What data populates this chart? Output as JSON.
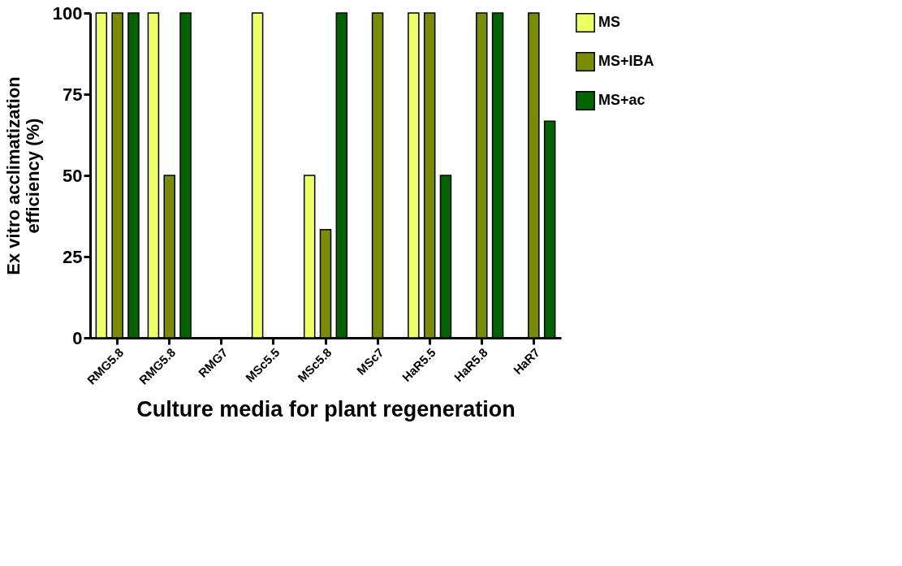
{
  "chart_data": {
    "type": "bar",
    "xlabel": "Culture media for plant regeneration",
    "ylabel": "Ex vitro acclimatization efficiency (%)",
    "categories": [
      "RMG5.8",
      "RMG5.8",
      "RMG7",
      "MSc5.5",
      "MSc5.8",
      "MSc7",
      "HaR5.5",
      "HaR5.8",
      "HaR7"
    ],
    "series": [
      {
        "name": "MS",
        "color": "#eeff66",
        "values": [
          100,
          100,
          0,
          100,
          50,
          0,
          100,
          0,
          0
        ]
      },
      {
        "name": "MS+IBA",
        "color": "#7a8c00",
        "values": [
          100,
          50,
          0,
          0,
          33.3,
          100,
          100,
          100,
          100
        ]
      },
      {
        "name": "MS+ac",
        "color": "#006400",
        "values": [
          100,
          100,
          0,
          0,
          100,
          0,
          50,
          100,
          66.7
        ]
      }
    ],
    "ylim": [
      0,
      100
    ],
    "yticks": [
      0,
      25,
      50,
      75,
      100
    ],
    "grid": false,
    "legend": "top right"
  }
}
